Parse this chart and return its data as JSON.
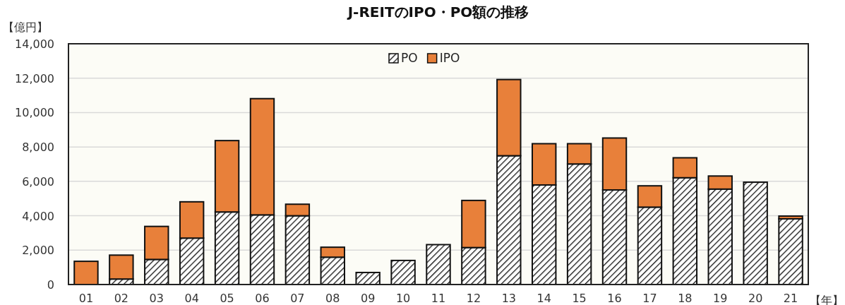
{
  "chart_data": {
    "type": "bar",
    "stacked": true,
    "title": "J-REITのIPO・PO額の推移",
    "ylabel": "【億円】",
    "xlabel": "【年】",
    "categories": [
      "01",
      "02",
      "03",
      "04",
      "05",
      "06",
      "07",
      "08",
      "09",
      "10",
      "11",
      "12",
      "13",
      "14",
      "15",
      "16",
      "17",
      "18",
      "19",
      "20",
      "21"
    ],
    "series": [
      {
        "name": "PO",
        "color": "#111111",
        "values": [
          null,
          320,
          1460,
          2700,
          4220,
          4050,
          4000,
          1590,
          700,
          1400,
          2320,
          2150,
          7490,
          5790,
          7010,
          5500,
          4500,
          6210,
          5550,
          5950,
          3820
        ]
      },
      {
        "name": "IPO",
        "color": "#e8803a",
        "values": [
          1350,
          1390,
          1920,
          2110,
          4150,
          6760,
          670,
          580,
          null,
          null,
          null,
          2740,
          4430,
          2400,
          1180,
          3020,
          1240,
          1160,
          760,
          null,
          160
        ]
      }
    ],
    "ylim": [
      0,
      14000
    ],
    "yticks": [
      {
        "value": 0,
        "label": "0"
      },
      {
        "value": 2000,
        "label": "2,000"
      },
      {
        "value": 4000,
        "label": "4,000"
      },
      {
        "value": 6000,
        "label": "6,000"
      },
      {
        "value": 8000,
        "label": "8,000"
      },
      {
        "value": 10000,
        "label": "10,000"
      },
      {
        "value": 12000,
        "label": "12,000"
      },
      {
        "value": 14000,
        "label": "14,000"
      }
    ],
    "grid": "y",
    "legend": "top"
  }
}
